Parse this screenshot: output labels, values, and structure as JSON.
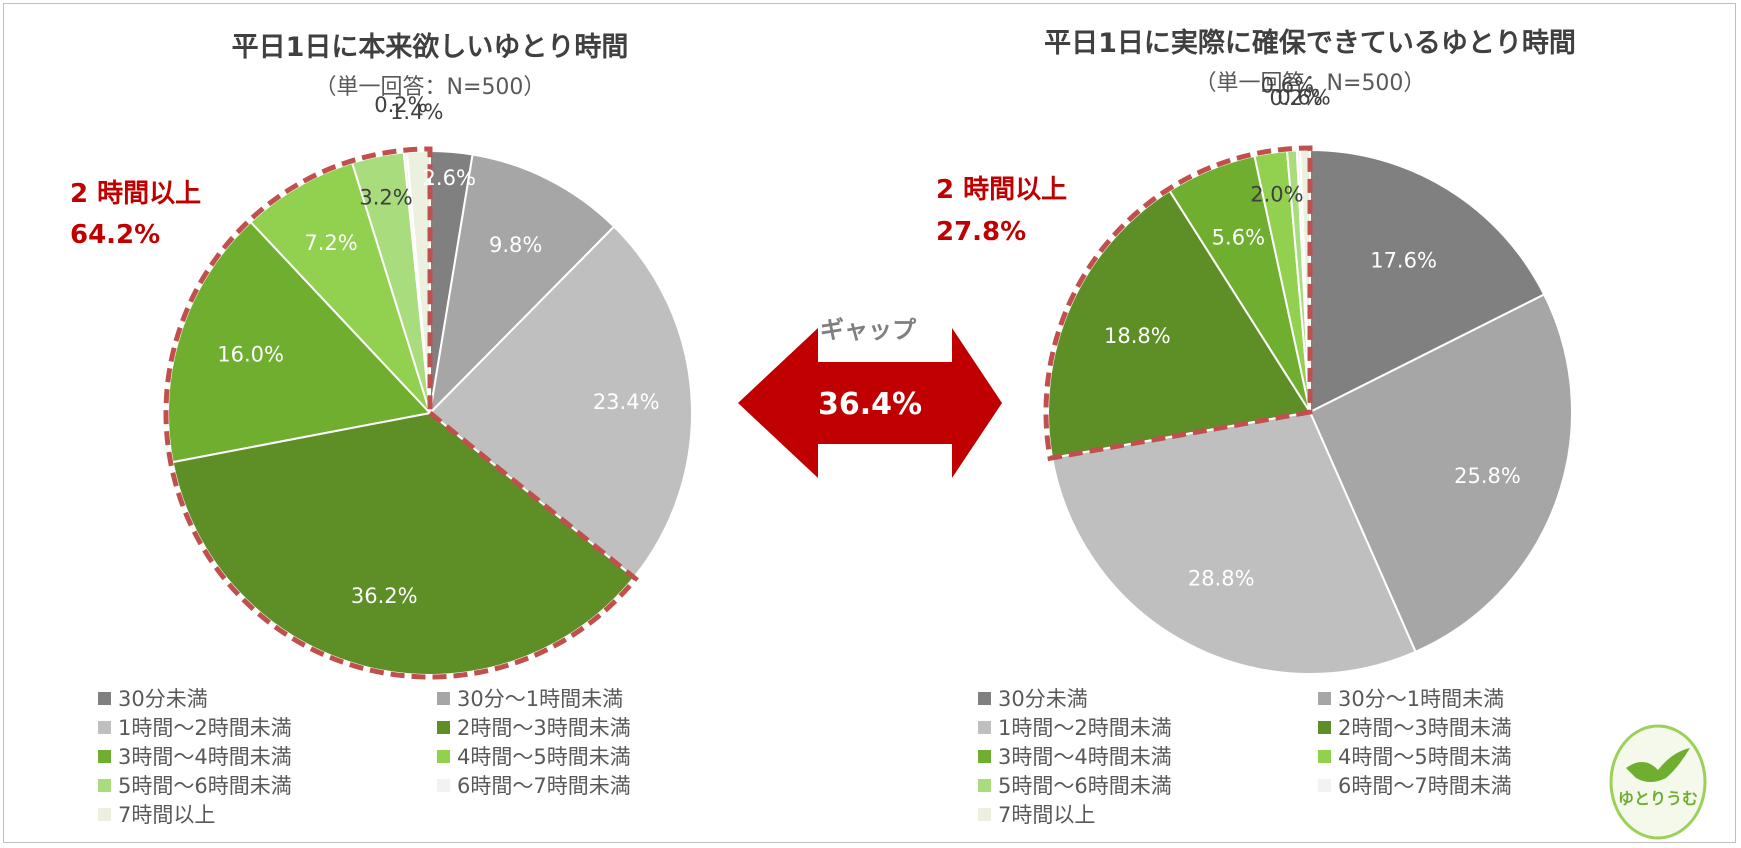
{
  "colors": [
    "#808080",
    "#a6a6a6",
    "#bfbfbf",
    "#5e8f27",
    "#6fae2e",
    "#92d050",
    "#a9dc7c",
    "#f2f2f2",
    "#ebf1de"
  ],
  "legend_labels": [
    "30分未満",
    "30分～1時間未満",
    "1時間～2時間未満",
    "2時間～3時間未満",
    "3時間～4時間未満",
    "4時間～5時間未満",
    "5時間～6時間未満",
    "6時間～7時間未満",
    "7時間以上"
  ],
  "gap": {
    "label": "ギャップ",
    "value": "36.4%"
  },
  "logo": {
    "text": "ゆとりうむ"
  },
  "chart_data": [
    {
      "type": "pie",
      "title": "平日1日に本来欲しいゆとり時間",
      "subtitle": "（単一回答：N=500）",
      "categories": [
        "30分未満",
        "30分～1時間未満",
        "1時間～2時間未満",
        "2時間～3時間未満",
        "3時間～4時間未満",
        "4時間～5時間未満",
        "5時間～6時間未満",
        "6時間～7時間未満",
        "7時間以上"
      ],
      "values": [
        2.6,
        9.8,
        23.4,
        36.2,
        16.0,
        7.2,
        3.2,
        0.2,
        1.4
      ],
      "value_labels": [
        "2.6%",
        "9.8%",
        "23.4%",
        "36.2%",
        "16.0%",
        "7.2%",
        "3.2%",
        "0.2%",
        "1.4%"
      ],
      "highlight": {
        "line1": "2 時間以上",
        "line2": "64.2%"
      }
    },
    {
      "type": "pie",
      "title": "平日1日に実際に確保できているゆとり時間",
      "subtitle": "（単一回答：N=500）",
      "categories": [
        "30分未満",
        "30分～1時間未満",
        "1時間～2時間未満",
        "2時間～3時間未満",
        "3時間～4時間未満",
        "4時間～5時間未満",
        "5時間～6時間未満",
        "6時間～7時間未満",
        "7時間以上"
      ],
      "values": [
        17.6,
        25.8,
        28.8,
        18.8,
        5.6,
        2.0,
        0.6,
        0.2,
        0.6
      ],
      "value_labels": [
        "17.6%",
        "25.8%",
        "28.8%",
        "18.8%",
        "5.6%",
        "2.0%",
        "0.6%",
        "0.2%",
        "0.6%"
      ],
      "highlight": {
        "line1": "2 時間以上",
        "line2": "27.8%"
      }
    }
  ]
}
